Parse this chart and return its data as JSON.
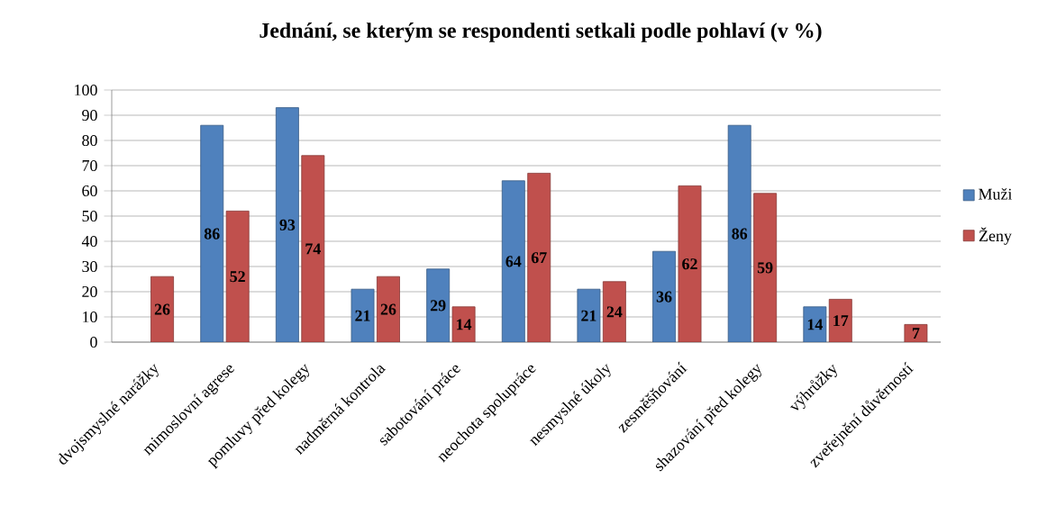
{
  "chart_data": {
    "type": "bar",
    "title": "Jednání, se kterým se respondenti setkali podle pohlaví (v %)",
    "categories": [
      "dvojsmyslné narážky",
      "mimoslovní agrese",
      "pomluvy před kolegy",
      "nadměrná kontrola",
      "sabotování práce",
      "neochota spolupráce",
      "nesmyslné úkoly",
      "zesměšňování",
      "shazování před kolegy",
      "výhrůžky",
      "zveřejnění důvěrností"
    ],
    "series": [
      {
        "name": "Muži",
        "color": "#4f81bd",
        "values": [
          null,
          86,
          93,
          21,
          29,
          64,
          21,
          36,
          86,
          14,
          null
        ]
      },
      {
        "name": "Ženy",
        "color": "#c0504d",
        "values": [
          26,
          52,
          74,
          26,
          14,
          67,
          24,
          62,
          59,
          17,
          7
        ]
      }
    ],
    "ylim": [
      0,
      100
    ],
    "yticks": [
      0,
      10,
      20,
      30,
      40,
      50,
      60,
      70,
      80,
      90,
      100
    ],
    "grid": "y",
    "legend": "right",
    "data_labels": true
  }
}
